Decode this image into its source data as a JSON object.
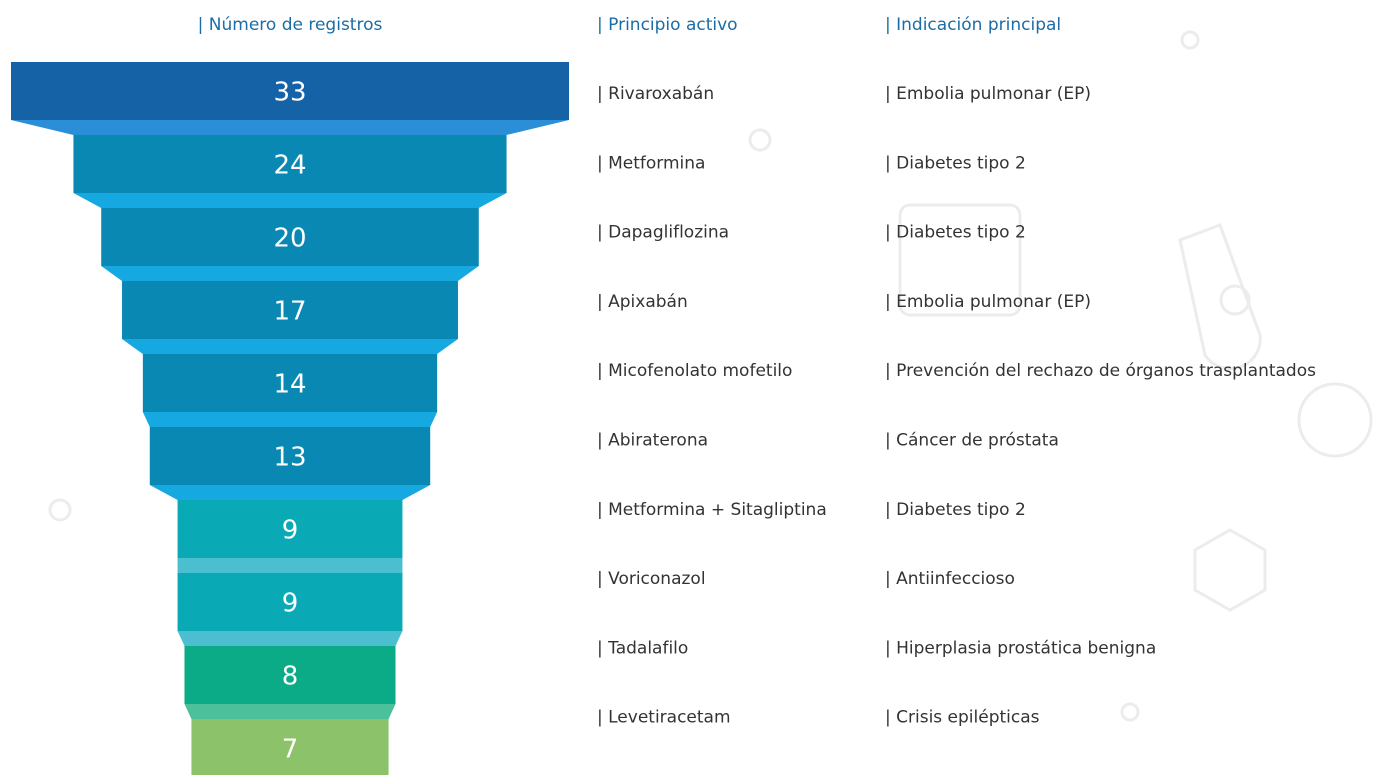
{
  "chart_data": {
    "type": "funnel",
    "headers": [
      "| Número de registros",
      "| Principio activo",
      "| Indicación principal"
    ],
    "categories": [
      "| Rivaroxabán",
      "| Metformina",
      "| Dapagliflozina",
      "| Apixabán",
      "| Micofenolato mofetilo",
      "| Abiraterona",
      "| Metformina + Sitagliptina",
      "| Voriconazol",
      "| Tadalafilo",
      "| Levetiracetam"
    ],
    "indications": [
      "| Embolia pulmonar (EP)",
      "| Diabetes tipo 2",
      "| Diabetes tipo 2",
      "| Embolia pulmonar (EP)",
      "| Prevención del rechazo de  órganos trasplantados",
      "| Cáncer de próstata",
      "| Diabetes tipo 2",
      "| Antiinfeccioso",
      "| Hiperplasia prostática benigna",
      "| Crisis epilépticas"
    ],
    "values": [
      33,
      24,
      20,
      17,
      14,
      13,
      9,
      9,
      8,
      7
    ],
    "colors": [
      "#1563a6",
      "#0a88b4",
      "#0a88b4",
      "#0a88b4",
      "#0a88b4",
      "#0a88b4",
      "#0aa9b6",
      "#0aa9b6",
      "#0aab86",
      "#8cc26a"
    ],
    "connector_colors": [
      "#2a8fd6",
      "#16a8e0",
      "#16a8e0",
      "#16a8e0",
      "#16a8e0",
      "#16a8e0",
      "#4bbfcf",
      "#4bbfcf",
      "#4cc09a",
      "#8cc26a"
    ]
  }
}
